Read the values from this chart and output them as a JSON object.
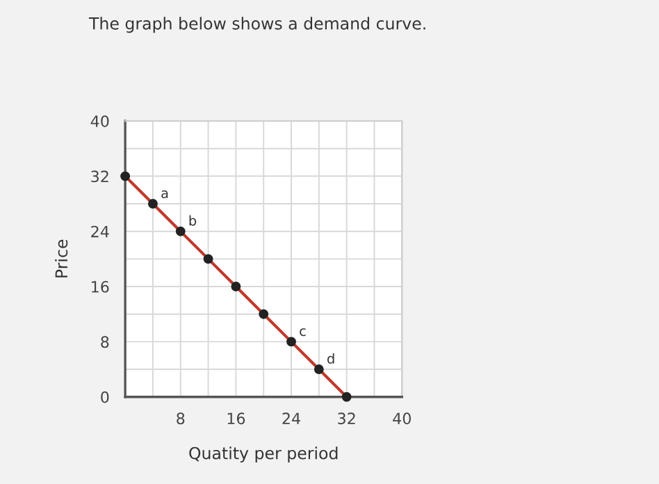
{
  "chart_data": {
    "type": "line",
    "title": "The graph below shows a demand curve.",
    "xlabel": "Quatity per period",
    "ylabel": "Price",
    "x": [
      0,
      4,
      8,
      12,
      16,
      20,
      24,
      28,
      32
    ],
    "series": [
      {
        "color": "#c0392b",
        "values": [
          32,
          28,
          24,
          20,
          16,
          12,
          8,
          4,
          0
        ]
      }
    ],
    "marker": "circle",
    "line_style": "solid",
    "grid": true,
    "xlim": [
      0,
      40
    ],
    "ylim": [
      0,
      40
    ],
    "xticks": [
      {
        "value": 0,
        "label": null
      },
      {
        "value": 4,
        "label": null
      },
      8,
      {
        "value": 12,
        "label": null
      },
      16,
      {
        "value": 20,
        "label": null
      },
      24,
      {
        "value": 28,
        "label": null
      },
      32,
      {
        "value": 36,
        "label": null
      },
      40
    ],
    "yticks": [
      0,
      {
        "value": 4,
        "label": null
      },
      8,
      {
        "value": 12,
        "label": null
      },
      16,
      {
        "value": 20,
        "label": null
      },
      24,
      {
        "value": 28,
        "label": null
      },
      32,
      {
        "value": 36,
        "label": null
      },
      40
    ],
    "annotations": [
      {
        "text": "a",
        "x": 4,
        "y": 28
      },
      {
        "text": "b",
        "x": 8,
        "y": 24
      },
      {
        "text": "c",
        "x": 24,
        "y": 8
      },
      {
        "text": "d",
        "x": 28,
        "y": 4
      }
    ]
  }
}
